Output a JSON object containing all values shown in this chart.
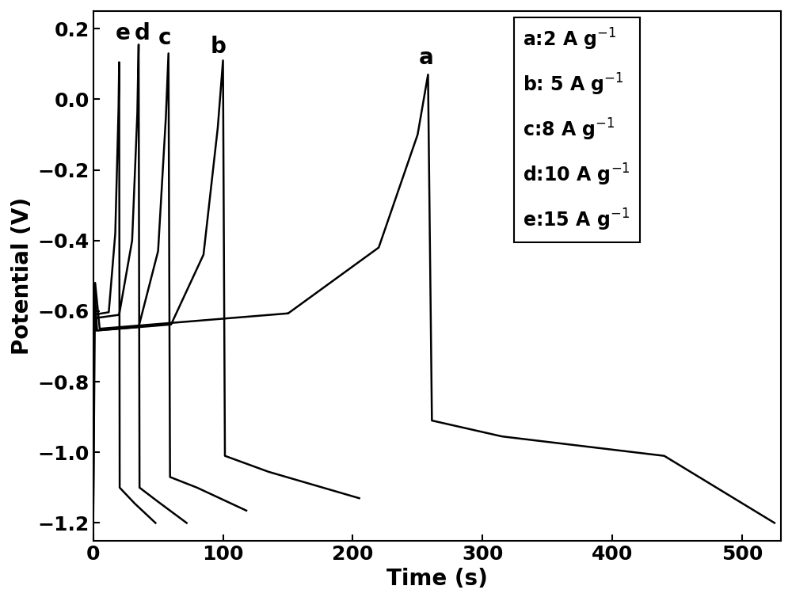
{
  "xlabel": "Time (s)",
  "ylabel": "Potential (V)",
  "xlim": [
    0,
    530
  ],
  "ylim": [
    -1.25,
    0.25
  ],
  "xticks": [
    0,
    100,
    200,
    300,
    400,
    500
  ],
  "yticks": [
    0.2,
    0.0,
    -0.2,
    -0.4,
    -0.6,
    -0.8,
    -1.0,
    -1.2
  ],
  "line_color": "#000000",
  "line_width": 1.8,
  "background_color": "#ffffff",
  "xlabel_fontsize": 20,
  "ylabel_fontsize": 20,
  "tick_fontsize": 18,
  "label_fontsize": 17,
  "annotation_fontsize": 18
}
